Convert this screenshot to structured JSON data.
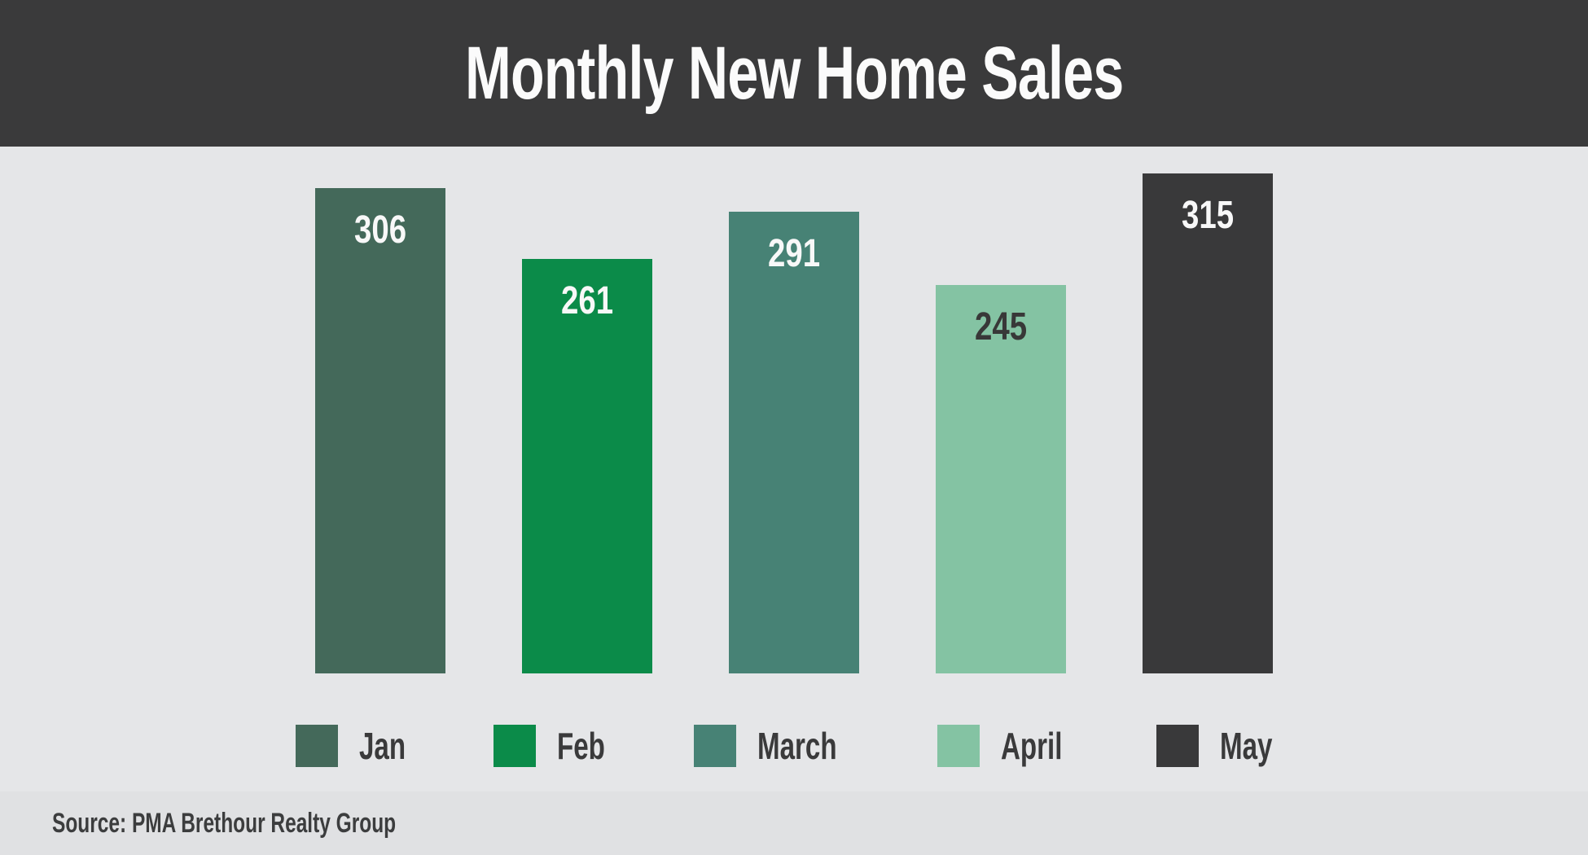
{
  "header": {
    "title": "Monthly New Home Sales"
  },
  "footer": {
    "source": "Source: PMA Brethour Realty Group"
  },
  "colors": {
    "header_bg": "#3a3a3b",
    "chart_bg": "#e5e6e8",
    "footer_bg": "#e0e1e3",
    "title_text": "#fbfbfb",
    "legend_text": "#3a3a3b",
    "source_text": "#3c3d3e"
  },
  "chart_data": {
    "type": "bar",
    "title": "Monthly New Home Sales",
    "categories": [
      "Jan",
      "Feb",
      "March",
      "April",
      "May"
    ],
    "values": [
      306,
      261,
      291,
      245,
      315
    ],
    "xlabel": "",
    "ylabel": "",
    "ylim": [
      0,
      332
    ],
    "grid": false,
    "axes_visible": false,
    "value_label_position": "inside-top",
    "legend_position": "bottom",
    "bars": [
      {
        "label": "Jan",
        "value": 306,
        "color": "#44695a",
        "value_color": "#f8f8f8"
      },
      {
        "label": "Feb",
        "value": 261,
        "color": "#0b8b49",
        "value_color": "#f8f8f8"
      },
      {
        "label": "March",
        "value": 291,
        "color": "#478275",
        "value_color": "#f8f8f8"
      },
      {
        "label": "April",
        "value": 245,
        "color": "#84c3a3",
        "value_color": "#383838"
      },
      {
        "label": "May",
        "value": 315,
        "color": "#39393a",
        "value_color": "#f8f8f8"
      }
    ]
  }
}
